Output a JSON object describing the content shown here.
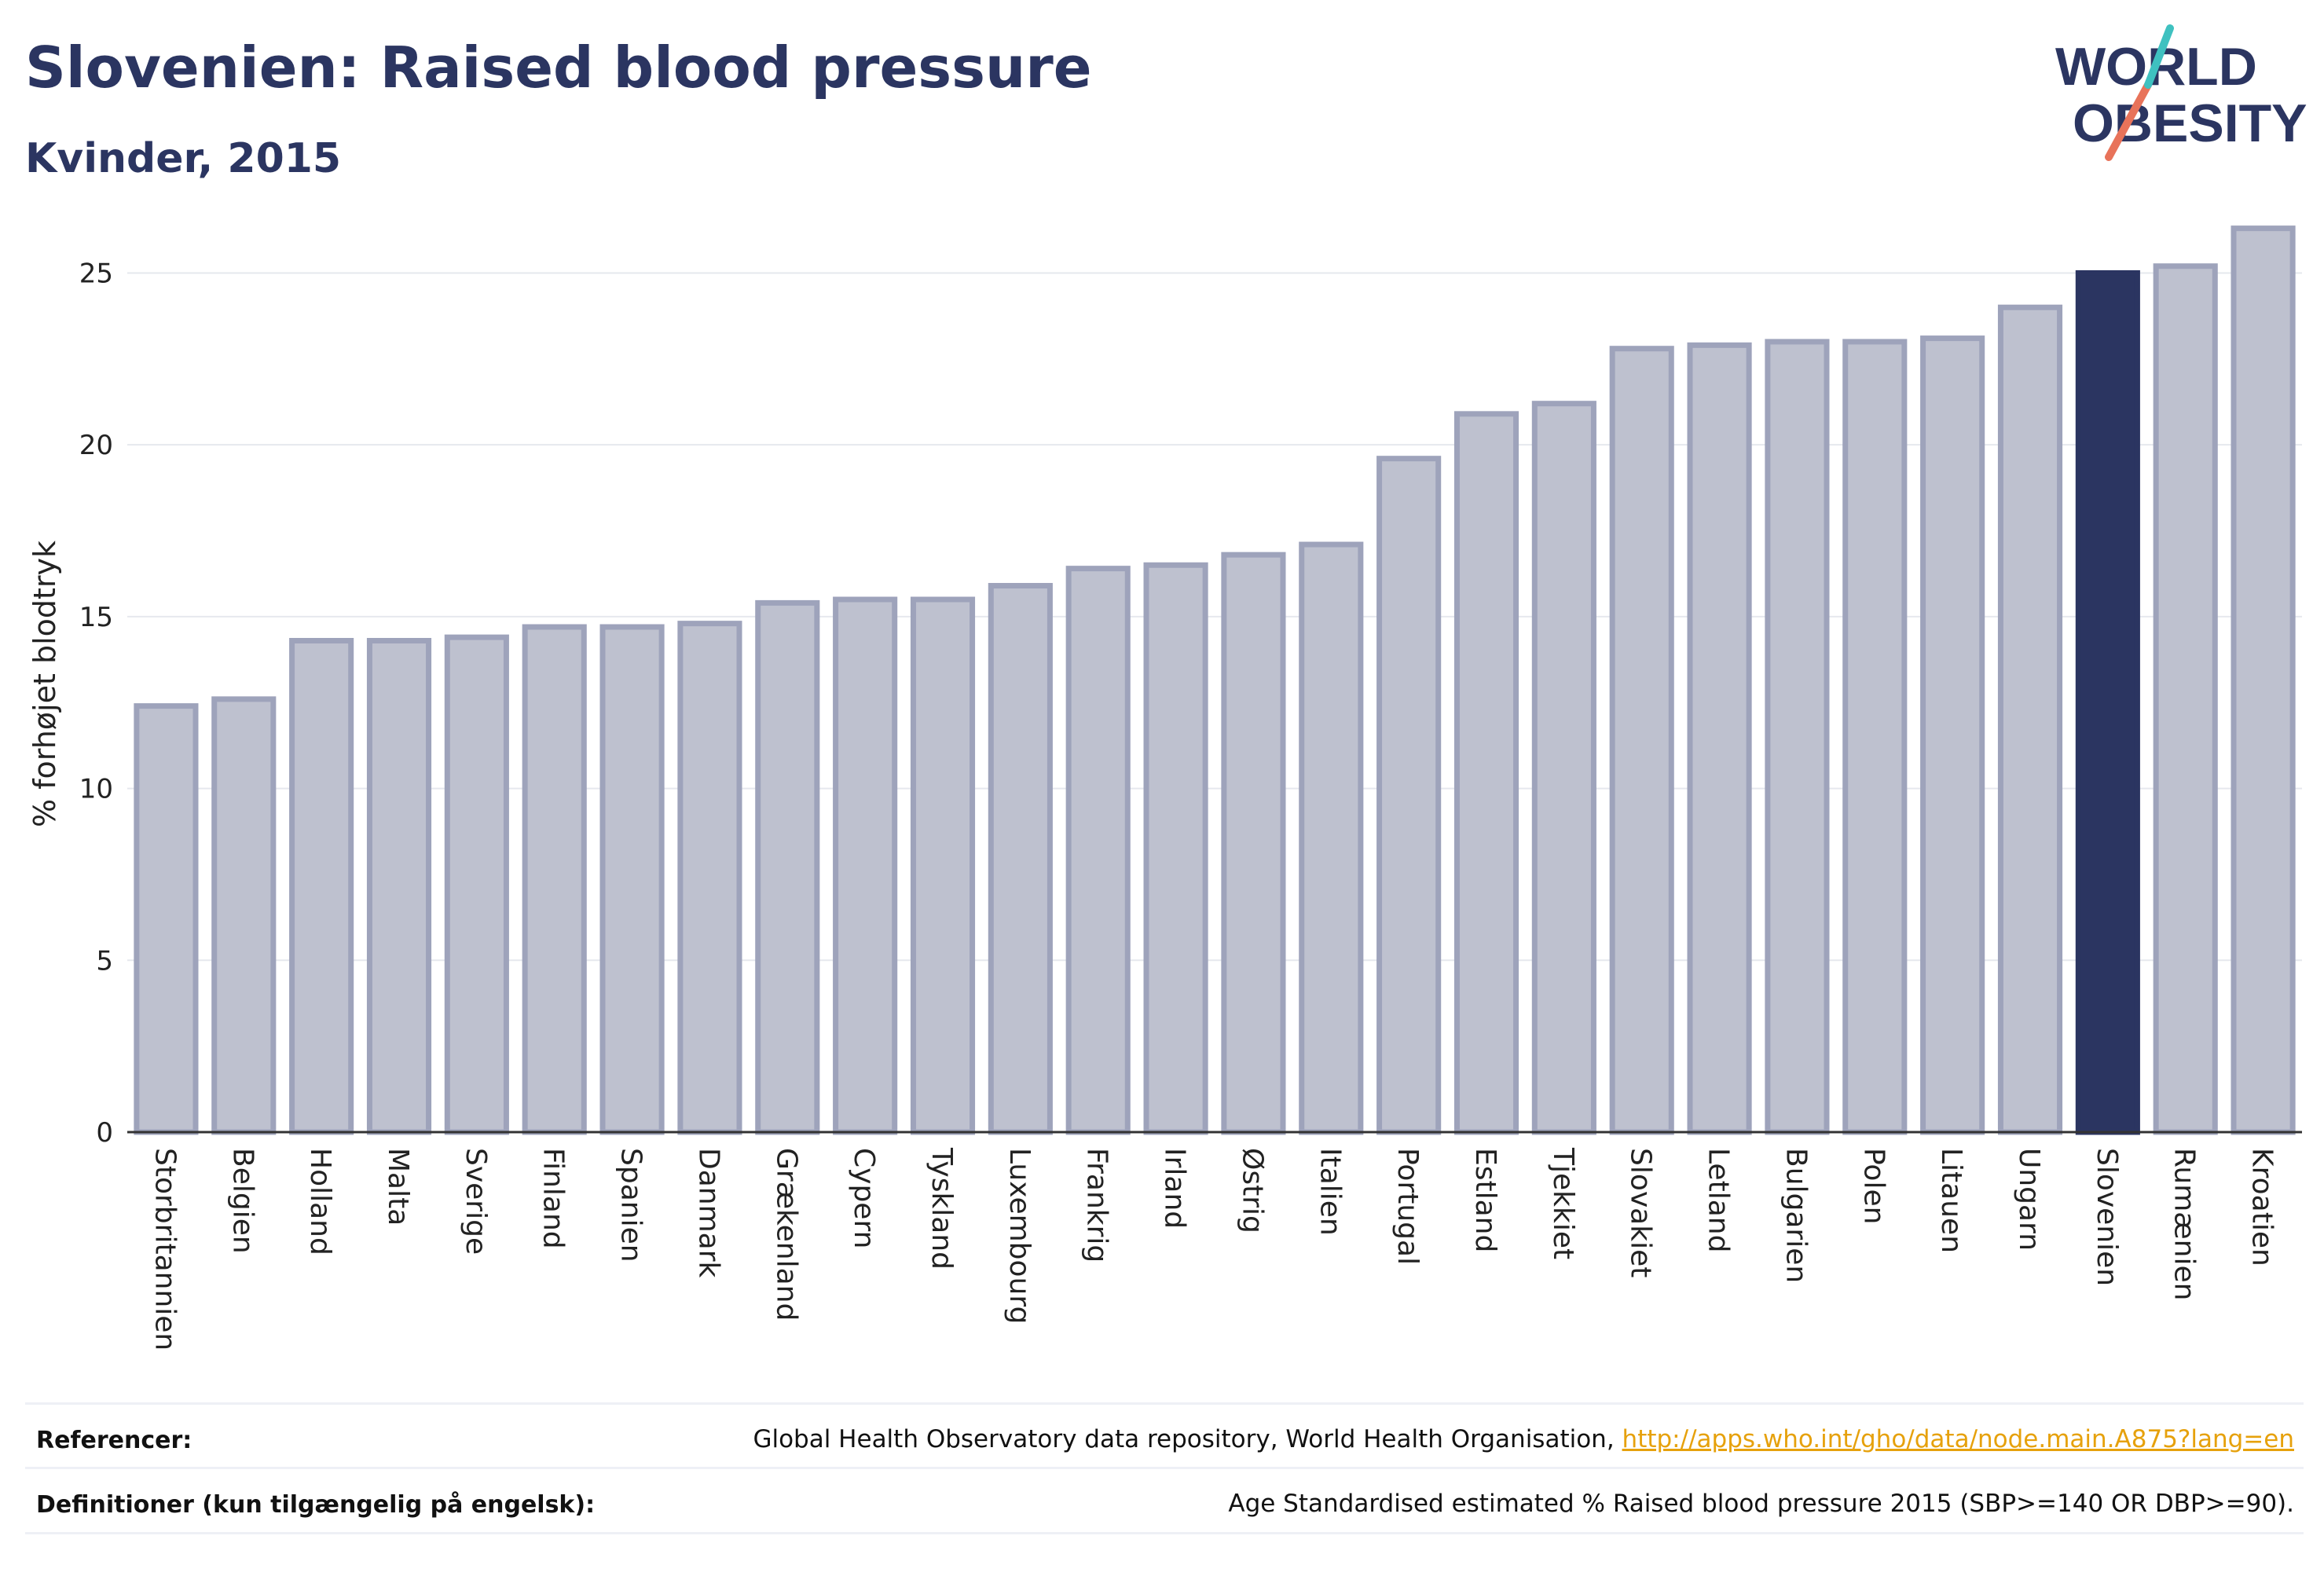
{
  "header": {
    "title": "Slovenien: Raised blood pressure",
    "subtitle": "Kvinder, 2015"
  },
  "logo": {
    "line1": "WORLD",
    "line2": "OBESITY",
    "text_color": "#2b3561",
    "accent_teal": "#3fc1c0",
    "accent_coral": "#e8735a"
  },
  "chart_data": {
    "type": "bar",
    "categories": [
      "Storbritannien",
      "Belgien",
      "Holland",
      "Malta",
      "Sverige",
      "Finland",
      "Spanien",
      "Danmark",
      "Grækenland",
      "Cypern",
      "Tyskland",
      "Luxembourg",
      "Frankrig",
      "Irland",
      "Østrig",
      "Italien",
      "Portugal",
      "Estland",
      "Tjekkiet",
      "Slovakiet",
      "Letland",
      "Bulgarien",
      "Polen",
      "Litauen",
      "Ungarn",
      "Slovenien",
      "Rumænien",
      "Kroatien"
    ],
    "values": [
      12.4,
      12.6,
      14.3,
      14.3,
      14.4,
      14.7,
      14.7,
      14.8,
      15.4,
      15.5,
      15.5,
      15.9,
      16.4,
      16.5,
      16.8,
      17.1,
      19.6,
      20.9,
      21.2,
      22.8,
      22.9,
      23.0,
      23.0,
      23.1,
      24.0,
      25.0,
      25.2,
      26.3
    ],
    "highlight": "Slovenien",
    "ylabel": "% forhøjet blodtryk",
    "xlabel": "",
    "ylim": [
      0,
      27
    ],
    "yticks": [
      0,
      5,
      10,
      15,
      20,
      25
    ],
    "grid": true,
    "colors": {
      "bar": "#bec1cf",
      "bar_edge": "#9ea3bb",
      "highlight": "#2b3561",
      "grid": "#e6e8ee",
      "axis": "#333333"
    }
  },
  "footer": {
    "references_label": "Referencer:",
    "references_text": "Global Health Observatory data repository, World Health Organisation, ",
    "references_link": "http://apps.who.int/gho/data/node.main.A875?lang=en",
    "definitions_label": "Definitioner (kun tilgængelig på engelsk):",
    "definitions_text": "Age Standardised estimated % Raised blood pressure 2015 (SBP>=140 OR DBP>=90)."
  }
}
